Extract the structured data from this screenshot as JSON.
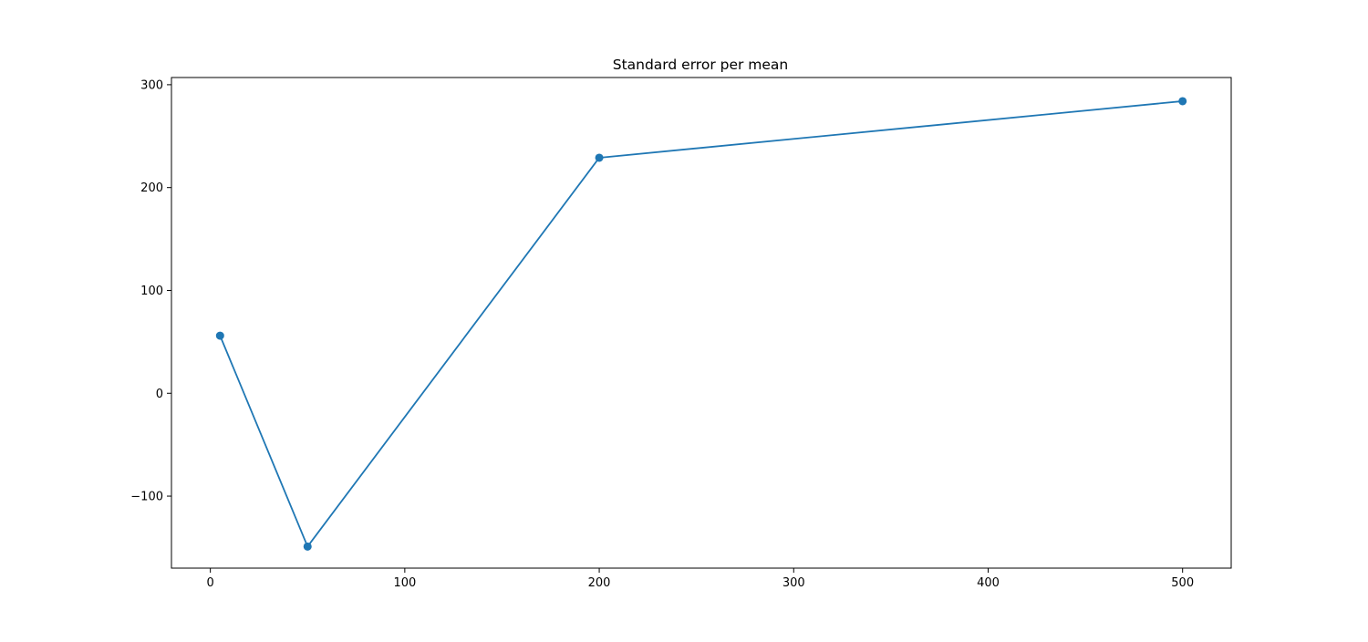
{
  "chart_data": {
    "type": "line",
    "title": "Standard error per mean",
    "xlabel": "",
    "ylabel": "",
    "x": [
      5,
      50,
      200,
      500
    ],
    "series": [
      {
        "values": [
          56,
          -149,
          229,
          284
        ],
        "color": "#1f77b4",
        "marker": "circle"
      }
    ],
    "xlim": [
      -20,
      525
    ],
    "ylim": [
      -170,
      307
    ],
    "xticks": [
      0,
      100,
      200,
      300,
      400,
      500
    ],
    "xtick_labels": [
      "0",
      "100",
      "200",
      "300",
      "400",
      "500"
    ],
    "yticks": [
      -100,
      0,
      100,
      200,
      300
    ],
    "ytick_labels": [
      "−100",
      "0",
      "100",
      "200",
      "300"
    ],
    "grid": false,
    "legend": "none"
  }
}
